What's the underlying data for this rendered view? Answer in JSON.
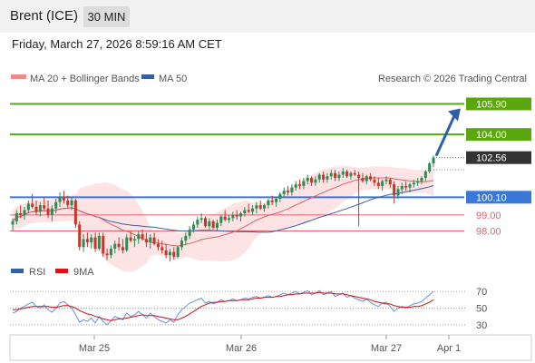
{
  "header": {
    "symbol": "Brent (ICE)",
    "timeframe": "30 MIN",
    "datetime": "Friday, March 27, 2026 8:59:16 AM CET"
  },
  "legend": {
    "ma20": "MA 20 + Bollinger Bands",
    "ma50": "MA 50",
    "credit": "Research © 2026 Trading Central",
    "rsi": "RSI",
    "rsi_ma": "9MA"
  },
  "colors": {
    "up": "#2e8b57",
    "down": "#c0392b",
    "ma20": "#e06060",
    "ma50": "#3a5fa0",
    "band": "#fde3e3",
    "green": "#5aa70f",
    "blue": "#3a78d8",
    "red": "#e06070",
    "current": "#333333",
    "rsi": "#6b8fe0",
    "rsi_ma": "#cc1111"
  },
  "chart_data": [
    {
      "type": "candlestick",
      "ylim": [
        96.0,
        107.0
      ],
      "x_labels": [
        "Mar 25",
        "Mar 26",
        "Mar 27",
        "Apr 1"
      ],
      "current_price": 102.56,
      "levels": [
        {
          "value": 105.9,
          "label": "105.90",
          "style": "badge",
          "color": "green"
        },
        {
          "value": 104.0,
          "label": "104.00",
          "style": "badge",
          "color": "green"
        },
        {
          "value": 100.1,
          "label": "100.10",
          "style": "badge",
          "color": "blue"
        },
        {
          "value": 99.0,
          "label": "99.00",
          "style": "text",
          "color": "red"
        },
        {
          "value": 98.0,
          "label": "98.00",
          "style": "text",
          "color": "red"
        }
      ],
      "candles": [
        [
          98.4,
          98.8,
          98.0,
          98.6
        ],
        [
          98.6,
          99.3,
          98.4,
          99.1
        ],
        [
          99.1,
          99.6,
          98.8,
          99.0
        ],
        [
          99.0,
          99.5,
          98.7,
          99.3
        ],
        [
          99.3,
          99.9,
          99.1,
          99.7
        ],
        [
          99.7,
          100.3,
          99.4,
          99.5
        ],
        [
          99.5,
          99.9,
          99.0,
          99.2
        ],
        [
          99.2,
          99.8,
          98.9,
          99.6
        ],
        [
          99.6,
          100.1,
          99.3,
          99.4
        ],
        [
          99.4,
          99.9,
          98.8,
          99.0
        ],
        [
          99.0,
          99.6,
          98.6,
          99.4
        ],
        [
          99.4,
          100.0,
          99.1,
          99.8
        ],
        [
          99.8,
          100.4,
          99.5,
          100.1
        ],
        [
          100.1,
          100.5,
          99.7,
          99.9
        ],
        [
          99.9,
          100.2,
          99.4,
          99.6
        ],
        [
          99.6,
          100.1,
          99.3,
          99.9
        ],
        [
          99.9,
          100.0,
          98.2,
          98.4
        ],
        [
          98.4,
          98.6,
          96.8,
          97.0
        ],
        [
          97.0,
          97.8,
          96.7,
          97.5
        ],
        [
          97.5,
          97.9,
          97.0,
          97.3
        ],
        [
          97.3,
          97.8,
          96.9,
          97.6
        ],
        [
          97.6,
          97.9,
          96.7,
          96.9
        ],
        [
          96.9,
          97.9,
          96.8,
          97.7
        ],
        [
          97.7,
          97.9,
          96.4,
          96.6
        ],
        [
          96.6,
          96.9,
          96.2,
          96.5
        ],
        [
          96.5,
          97.1,
          96.3,
          96.9
        ],
        [
          96.9,
          97.4,
          96.6,
          97.2
        ],
        [
          97.2,
          97.6,
          96.8,
          97.0
        ],
        [
          97.0,
          97.5,
          96.6,
          96.8
        ],
        [
          96.8,
          97.8,
          96.7,
          97.6
        ],
        [
          97.6,
          98.0,
          97.3,
          97.4
        ],
        [
          97.4,
          97.7,
          97.0,
          97.5
        ],
        [
          97.5,
          98.0,
          97.2,
          97.8
        ],
        [
          97.8,
          98.1,
          97.4,
          97.5
        ],
        [
          97.5,
          97.9,
          97.0,
          97.3
        ],
        [
          97.3,
          97.8,
          96.9,
          97.6
        ],
        [
          97.6,
          97.9,
          97.1,
          97.2
        ],
        [
          97.2,
          97.5,
          96.8,
          97.0
        ],
        [
          97.0,
          97.4,
          96.6,
          96.8
        ],
        [
          96.8,
          97.2,
          96.3,
          96.5
        ],
        [
          96.5,
          96.9,
          96.1,
          96.7
        ],
        [
          96.7,
          97.0,
          96.2,
          96.4
        ],
        [
          96.4,
          97.1,
          96.3,
          97.0
        ],
        [
          97.0,
          97.6,
          96.8,
          97.4
        ],
        [
          97.4,
          97.9,
          97.1,
          97.7
        ],
        [
          97.7,
          98.3,
          97.5,
          98.1
        ],
        [
          98.1,
          98.6,
          97.9,
          98.4
        ],
        [
          98.4,
          98.9,
          98.2,
          98.7
        ],
        [
          98.7,
          99.1,
          98.5,
          98.8
        ],
        [
          98.8,
          98.9,
          98.2,
          98.3
        ],
        [
          98.3,
          98.8,
          98.1,
          98.6
        ],
        [
          98.6,
          98.7,
          98.1,
          98.2
        ],
        [
          98.2,
          98.7,
          98.0,
          98.5
        ],
        [
          98.5,
          99.0,
          98.3,
          98.9
        ],
        [
          98.9,
          99.3,
          98.6,
          98.7
        ],
        [
          98.7,
          99.0,
          98.5,
          98.8
        ],
        [
          98.8,
          99.2,
          98.6,
          99.0
        ],
        [
          99.0,
          99.3,
          98.7,
          98.9
        ],
        [
          98.9,
          99.2,
          98.6,
          99.1
        ],
        [
          99.1,
          99.5,
          98.9,
          99.3
        ],
        [
          99.3,
          99.7,
          99.1,
          99.2
        ],
        [
          99.2,
          99.6,
          99.0,
          99.4
        ],
        [
          99.4,
          99.8,
          99.1,
          99.6
        ],
        [
          99.6,
          99.9,
          99.3,
          99.4
        ],
        [
          99.4,
          99.7,
          99.2,
          99.6
        ],
        [
          99.6,
          100.0,
          99.4,
          99.9
        ],
        [
          99.9,
          100.2,
          99.6,
          99.8
        ],
        [
          99.8,
          100.1,
          99.5,
          100.0
        ],
        [
          100.0,
          100.4,
          99.8,
          100.3
        ],
        [
          100.3,
          100.7,
          100.1,
          100.5
        ],
        [
          100.5,
          100.8,
          100.2,
          100.4
        ],
        [
          100.4,
          100.9,
          100.2,
          100.7
        ],
        [
          100.7,
          101.1,
          100.5,
          100.9
        ],
        [
          100.9,
          101.2,
          100.6,
          100.8
        ],
        [
          100.8,
          101.3,
          100.6,
          101.1
        ],
        [
          101.1,
          101.5,
          100.9,
          101.3
        ],
        [
          101.3,
          101.4,
          100.8,
          101.0
        ],
        [
          101.0,
          101.4,
          100.8,
          101.2
        ],
        [
          101.2,
          101.6,
          101.0,
          101.5
        ],
        [
          101.5,
          101.7,
          101.0,
          101.2
        ],
        [
          101.2,
          101.6,
          101.0,
          101.4
        ],
        [
          101.4,
          101.8,
          101.2,
          101.6
        ],
        [
          101.6,
          101.8,
          101.1,
          101.3
        ],
        [
          101.3,
          101.7,
          101.1,
          101.5
        ],
        [
          101.5,
          101.9,
          101.3,
          101.7
        ],
        [
          101.7,
          101.8,
          101.3,
          101.4
        ],
        [
          101.4,
          101.7,
          101.2,
          101.6
        ],
        [
          101.6,
          101.8,
          101.4,
          101.5
        ],
        [
          101.5,
          101.7,
          98.3,
          101.3
        ],
        [
          101.3,
          101.6,
          101.0,
          101.1
        ],
        [
          101.1,
          101.5,
          100.9,
          101.4
        ],
        [
          101.4,
          101.6,
          101.1,
          101.2
        ],
        [
          101.2,
          101.4,
          100.8,
          101.0
        ],
        [
          101.0,
          101.3,
          100.6,
          100.8
        ],
        [
          100.8,
          101.2,
          100.5,
          101.1
        ],
        [
          101.1,
          101.4,
          100.9,
          101.2
        ],
        [
          101.2,
          101.3,
          100.7,
          100.9
        ],
        [
          100.9,
          101.1,
          99.7,
          100.2
        ],
        [
          100.2,
          100.8,
          100.0,
          100.6
        ],
        [
          100.6,
          101.0,
          100.3,
          100.8
        ],
        [
          100.8,
          101.1,
          100.5,
          100.7
        ],
        [
          100.7,
          101.0,
          100.4,
          100.9
        ],
        [
          100.9,
          101.2,
          100.7,
          101.0
        ],
        [
          101.0,
          101.3,
          100.8,
          101.1
        ],
        [
          101.1,
          101.4,
          100.9,
          101.3
        ],
        [
          101.3,
          101.8,
          101.1,
          101.7
        ],
        [
          101.7,
          102.3,
          101.6,
          102.2
        ],
        [
          102.2,
          102.7,
          102.0,
          102.56
        ]
      ]
    },
    {
      "type": "line",
      "ylim": [
        20,
        80
      ],
      "reference_lines": [
        70,
        50,
        30
      ],
      "series": [
        {
          "name": "RSI",
          "values": [
            44,
            46,
            50,
            52,
            55,
            57,
            52,
            50,
            54,
            48,
            45,
            50,
            56,
            58,
            54,
            50,
            42,
            33,
            36,
            34,
            38,
            32,
            40,
            34,
            30,
            35,
            40,
            38,
            36,
            44,
            40,
            42,
            46,
            42,
            38,
            44,
            40,
            36,
            34,
            32,
            36,
            33,
            42,
            48,
            52,
            56,
            58,
            60,
            62,
            56,
            58,
            55,
            57,
            60,
            58,
            59,
            61,
            59,
            60,
            62,
            61,
            63,
            64,
            62,
            63,
            65,
            63,
            64,
            66,
            68,
            66,
            68,
            70,
            67,
            69,
            71,
            66,
            68,
            71,
            66,
            68,
            70,
            64,
            66,
            68,
            63,
            65,
            62,
            60,
            58,
            61,
            57,
            54,
            52,
            56,
            57,
            52,
            46,
            50,
            52,
            50,
            53,
            55,
            56,
            58,
            62,
            66,
            70
          ]
        },
        {
          "name": "9MA",
          "values": [
            48,
            48,
            49,
            50,
            51,
            52,
            52,
            52,
            52,
            52,
            51,
            51,
            52,
            53,
            53,
            52,
            50,
            47,
            45,
            43,
            42,
            40,
            39,
            37,
            36,
            35,
            36,
            37,
            37,
            38,
            39,
            40,
            41,
            42,
            41,
            41,
            41,
            40,
            39,
            38,
            37,
            36,
            36,
            38,
            40,
            43,
            46,
            49,
            52,
            54,
            56,
            57,
            57,
            58,
            58,
            59,
            59,
            59,
            60,
            60,
            60,
            61,
            62,
            62,
            63,
            63,
            63,
            64,
            64,
            65,
            66,
            66,
            67,
            67,
            68,
            68,
            68,
            68,
            69,
            68,
            68,
            68,
            67,
            67,
            67,
            66,
            65,
            64,
            63,
            62,
            61,
            60,
            58,
            57,
            56,
            55,
            55,
            53,
            52,
            51,
            51,
            51,
            52,
            52,
            53,
            55,
            57,
            60
          ]
        }
      ]
    }
  ]
}
